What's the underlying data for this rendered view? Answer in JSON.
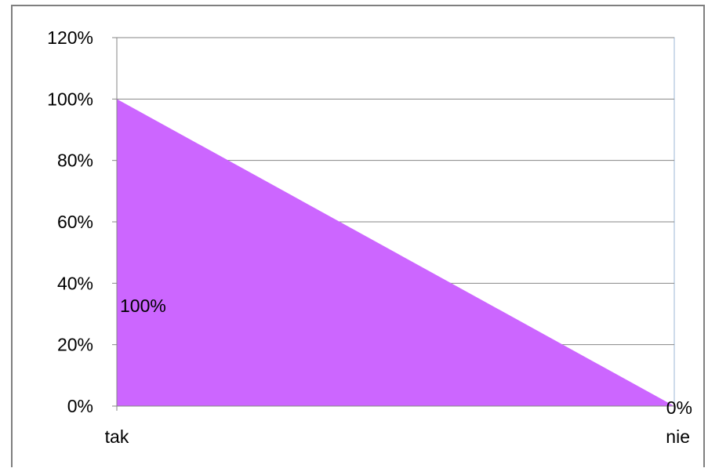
{
  "chart_data": {
    "type": "area",
    "categories": [
      "tak",
      "nie"
    ],
    "series": [
      {
        "values": [
          100,
          0
        ],
        "data_labels": [
          "100%",
          "0%"
        ],
        "color": "#cc66ff"
      }
    ],
    "ylim": [
      0,
      120
    ],
    "yticks": [
      "0%",
      "20%",
      "40%",
      "60%",
      "80%",
      "100%",
      "120%"
    ],
    "ytick_values": [
      0,
      20,
      40,
      60,
      80,
      100,
      120
    ],
    "grid": true,
    "legend": "none",
    "title": "",
    "xlabel": "",
    "ylabel": ""
  },
  "colors": {
    "area_fill": "#cc66ff",
    "gridline": "#868686",
    "plot_border": "#9bb7d4"
  }
}
